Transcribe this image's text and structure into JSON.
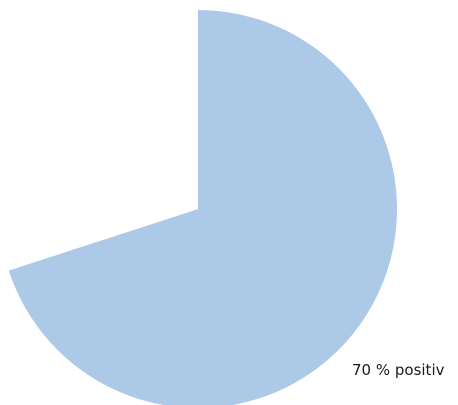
{
  "chart_data": {
    "type": "pie",
    "slices": [
      {
        "label": "70 % positiv",
        "value": 70,
        "color": "#adc9e8"
      },
      {
        "label": "",
        "value": 30,
        "color": "#ffffff"
      }
    ],
    "start_angle_deg": 0,
    "direction": "clockwise",
    "legend": "none",
    "title": ""
  }
}
